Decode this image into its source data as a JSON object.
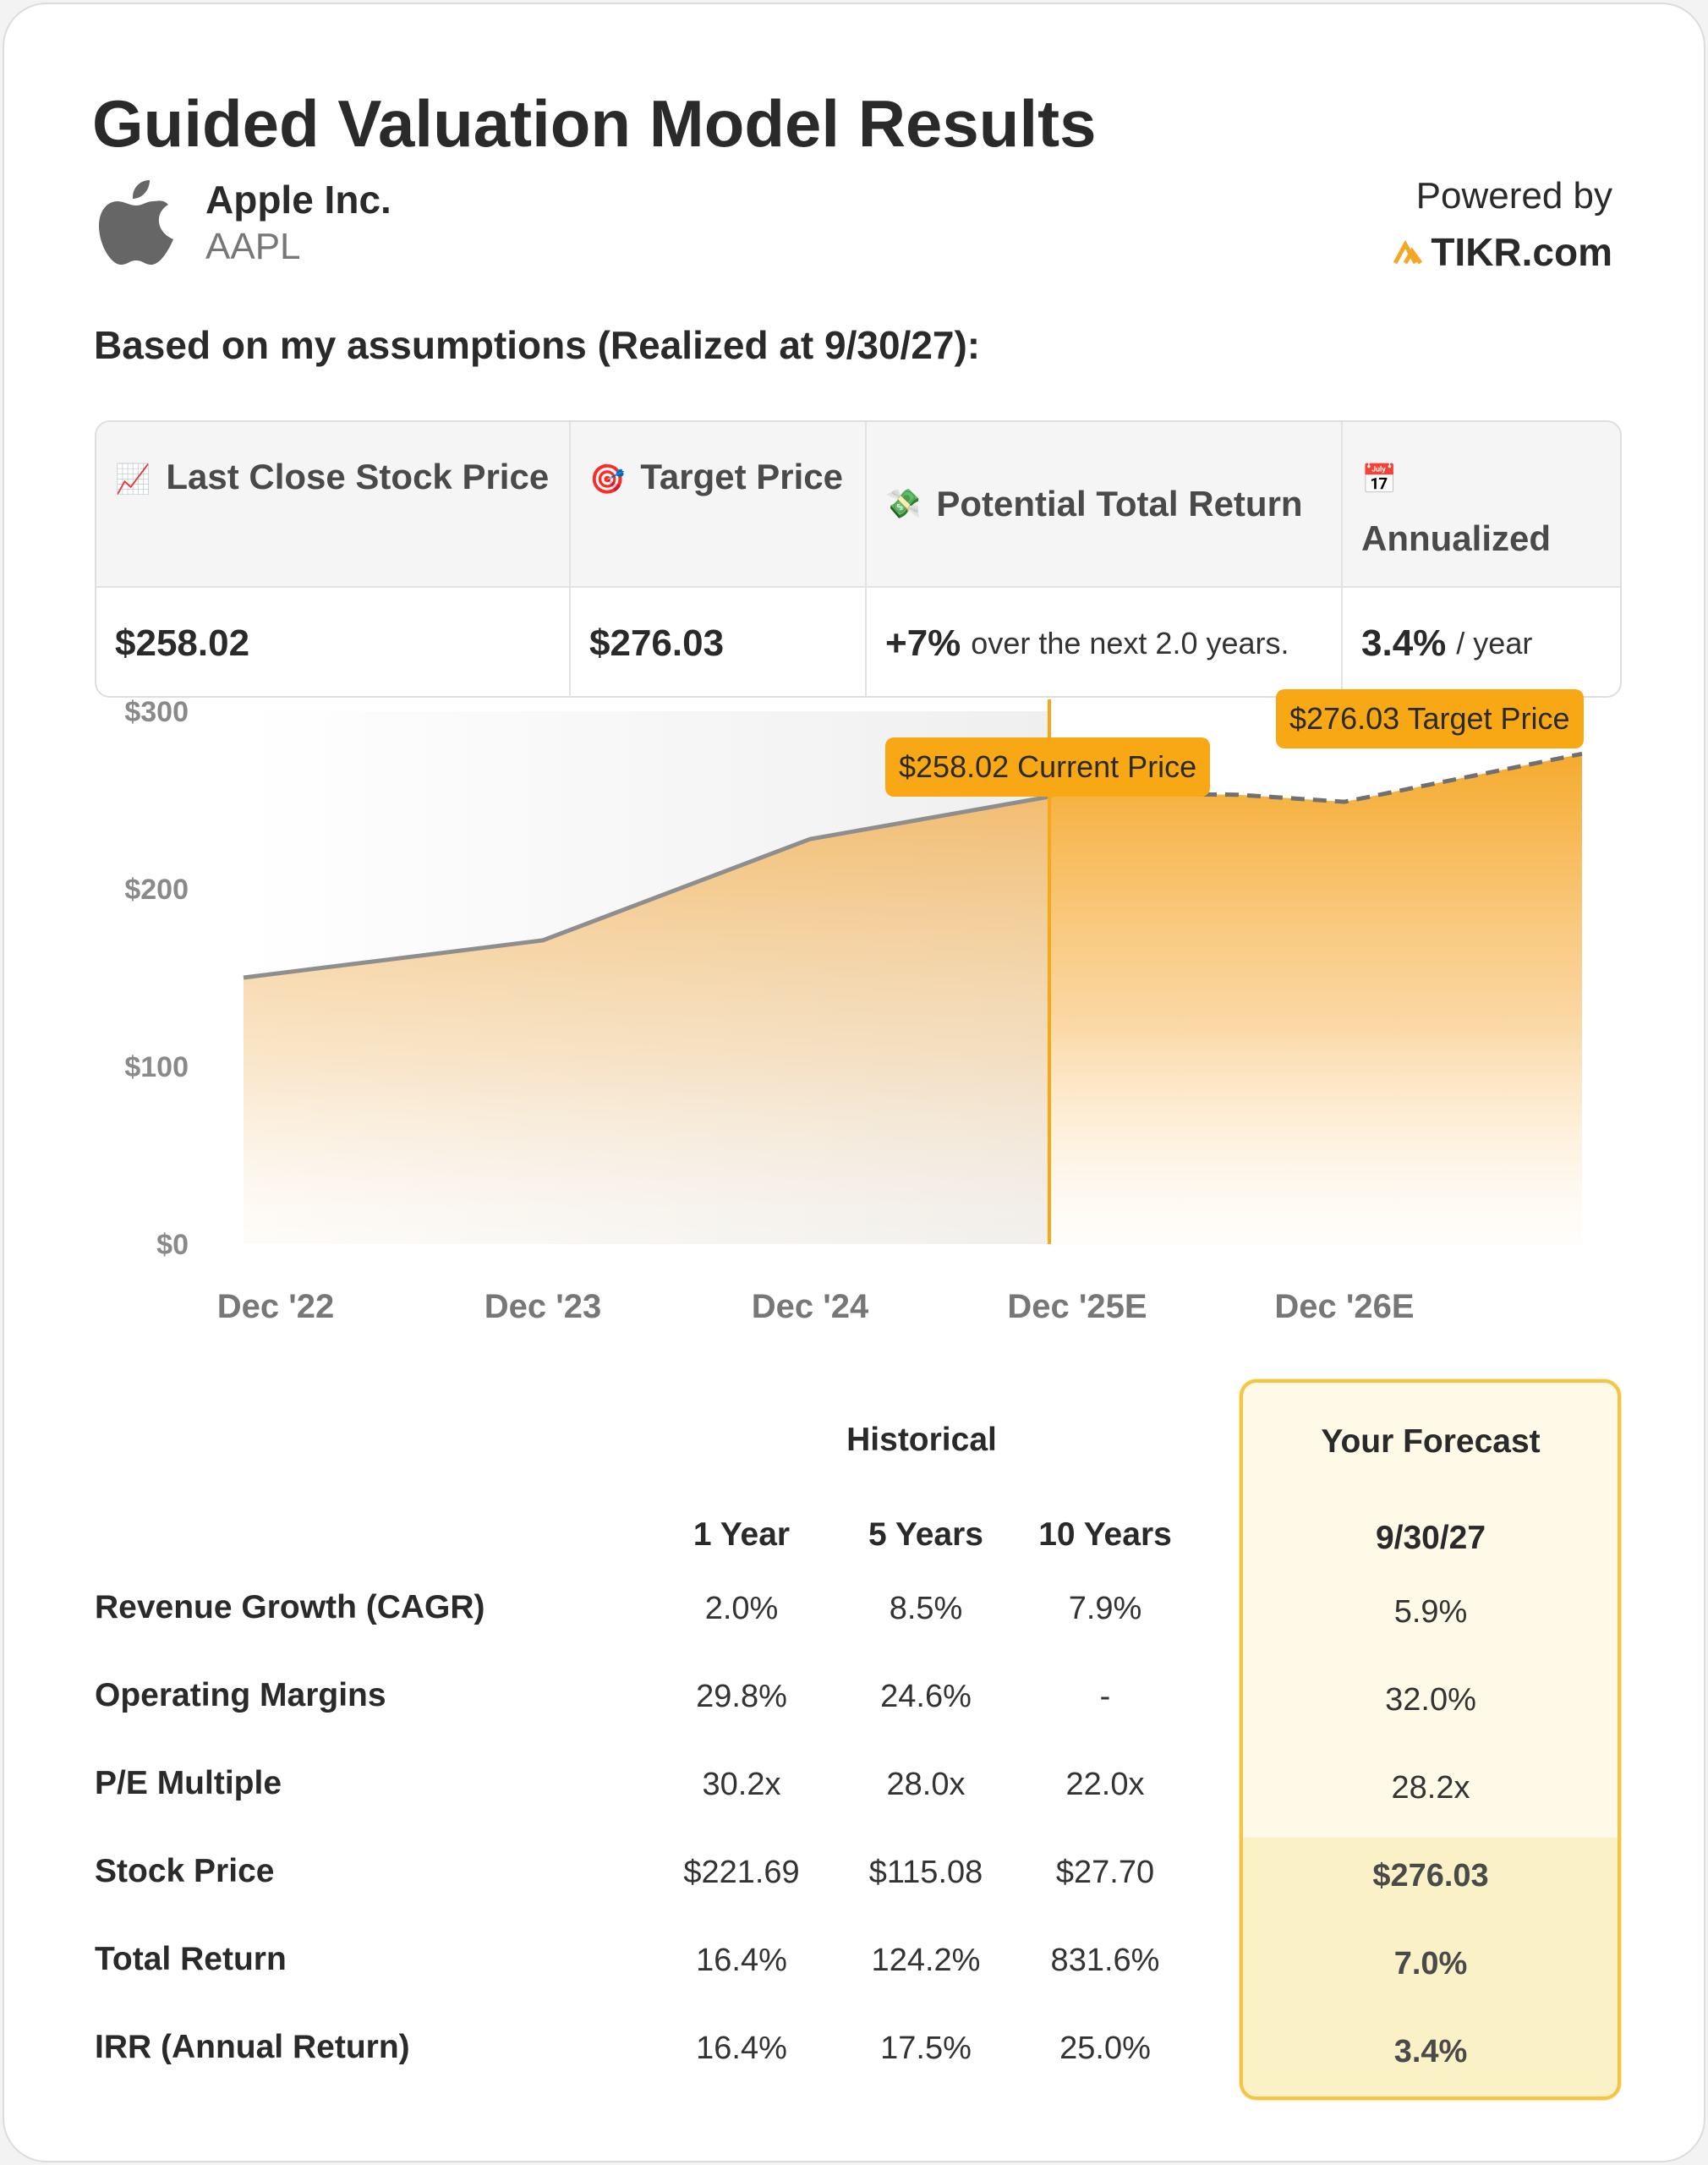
{
  "header": {
    "title": "Guided Valuation Model Results",
    "company_name": "Apple Inc.",
    "ticker": "AAPL",
    "powered_label": "Powered by",
    "brand": "TIKR.com",
    "assumptions_text": "Based on my assumptions (Realized at 9/30/27):"
  },
  "summary": {
    "last_close_label": "Last Close Stock Price",
    "last_close_value": "$258.02",
    "target_label": "Target Price",
    "target_value": "$276.03",
    "return_label": "Potential Total Return",
    "return_value": "+7%",
    "return_suffix": "over the next 2.0 years.",
    "annualized_label": "Annualized",
    "annualized_value": "3.4%",
    "annualized_suffix": "/ year",
    "icons": {
      "chart": "📈",
      "target": "🎯",
      "money": "💸",
      "calendar": "📅"
    }
  },
  "chart_data": {
    "type": "area",
    "title": "",
    "ylim": [
      0,
      300
    ],
    "y_ticks": [
      "$300",
      "$200",
      "$100",
      "$0"
    ],
    "y_tick_values": [
      300,
      200,
      100,
      0
    ],
    "x_ticks": [
      "Dec '22",
      "Dec '23",
      "Dec '24",
      "Dec '25E",
      "Dec '26E"
    ],
    "historical": {
      "x": [
        0,
        1,
        2,
        2.9
      ],
      "y": [
        150,
        171,
        228,
        252
      ]
    },
    "forecast": {
      "x": [
        3.0,
        3.6,
        4.0,
        4.8
      ],
      "y": [
        254,
        253,
        249,
        276.03
      ]
    },
    "current_price_label": "$258.02 Current Price",
    "target_price_label": "$276.03 Target Price",
    "colors": {
      "accent": "#f8a814",
      "line": "#8e8e8e",
      "area_top": "#f5a623",
      "area_bottom": "#fffaf2"
    }
  },
  "table": {
    "historical_header": "Historical",
    "forecast_header": "Your Forecast",
    "columns": [
      "1 Year",
      "5 Years",
      "10 Years"
    ],
    "forecast_date": "9/30/27",
    "rows": [
      {
        "label": "Revenue Growth (CAGR)",
        "values": [
          "2.0%",
          "8.5%",
          "7.9%"
        ],
        "forecast": "5.9%"
      },
      {
        "label": "Operating Margins",
        "values": [
          "29.8%",
          "24.6%",
          "-"
        ],
        "forecast": "32.0%"
      },
      {
        "label": "P/E Multiple",
        "values": [
          "30.2x",
          "28.0x",
          "22.0x"
        ],
        "forecast": "28.2x"
      },
      {
        "label": "Stock Price",
        "values": [
          "$221.69",
          "$115.08",
          "$27.70"
        ],
        "forecast": "$276.03"
      },
      {
        "label": "Total Return",
        "values": [
          "16.4%",
          "124.2%",
          "831.6%"
        ],
        "forecast": "7.0%"
      },
      {
        "label": "IRR (Annual Return)",
        "values": [
          "16.4%",
          "17.5%",
          "25.0%"
        ],
        "forecast": "3.4%"
      }
    ]
  }
}
